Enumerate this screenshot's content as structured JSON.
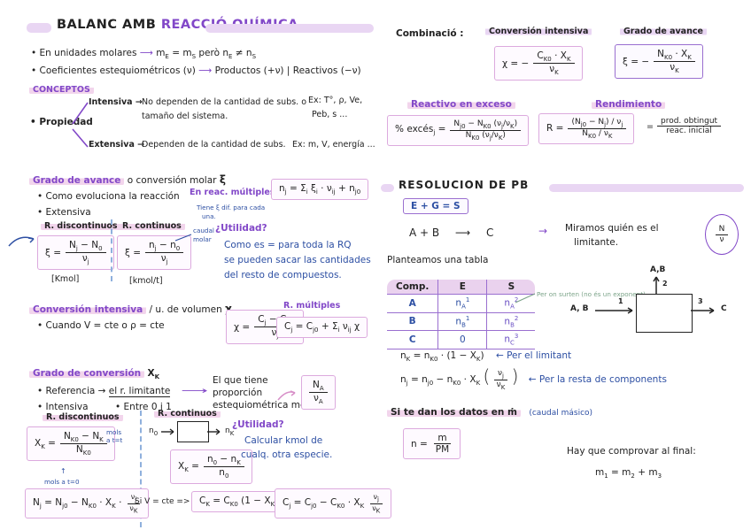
{
  "colors": {
    "accent_purple": "#8248c8",
    "highlight_lavender": "#e9d6f3",
    "highlight_pink": "#f2d5ec",
    "box_border": "#dcaade",
    "ink_blue": "#2d4fa3",
    "ink_green": "#7ca489",
    "ink_black": "#222222"
  },
  "left": {
    "title": {
      "pre": "BALANC AMB",
      "accent": "REACCIÓ QUÍMICA"
    },
    "bullets": [
      {
        "text": "• En unidades molares",
        "arrow": "⟶",
        "formula": "m<sub>E</sub> = m<sub>S</sub>   però   n<sub>E</sub> ≠ n<sub>S</sub>"
      },
      {
        "text": "• Coeficientes estequiométricos (ν)",
        "arrow": "⟶",
        "formula": "Productos (+ν)  |  Reactivos (−ν)"
      }
    ],
    "conceptos": {
      "heading": "CONCEPTOS",
      "root": "• Propiedad",
      "intensiva_label": "Intensiva →",
      "intensiva_text1": "No dependen de la cantidad de subs. o",
      "intensiva_text2": "tamaño del sistema.",
      "intensiva_ex1": "Ex: T°, ρ, Ve,",
      "intensiva_ex2": "Peb, s ...",
      "extensiva_label": "Extensiva →",
      "extensiva_text": "Dependen de la cantidad de subs.",
      "extensiva_ex": "Ex: m, V, energía ..."
    },
    "grado_avance": {
      "heading_hl": "Grado de avance",
      "heading_rest": "o conversión molar",
      "heading_sym": "ξ",
      "bullet1": "• Como evoluciona la reacción",
      "bullet2": "• Extensiva",
      "mult_label": "En reac. múltiples",
      "mult_formula": "n<sub>j</sub> = Σ<sub>i</sub> ξ<sub>i</sub> · ν<sub>ij</sub> + n<sub>j0</sub>",
      "mult_note1": "Tiene ξ dif. para cada",
      "mult_note2": "una.",
      "disc_title": "R. discontinuos",
      "disc_lhs": "ξ =",
      "disc_num": "N<sub>j</sub> − N<sub>0</sub>",
      "disc_den": "ν<sub>j</sub>",
      "disc_unit": "[Kmol]",
      "cont_title": "R. continuos",
      "cont_lhs": "ξ =",
      "cont_num": "n<sub>j</sub> − n<sub>0</sub>",
      "cont_den": "ν<sub>j</sub>",
      "cont_unit": "[kmol/t]",
      "cont_note1": "caudal",
      "cont_note2": "molar",
      "utilidad_title": "¿Utilidad?",
      "utilidad_l1": "Como es = para toda la RQ",
      "utilidad_l2": "se pueden sacar las cantidades",
      "utilidad_l3": "del resto de compuestos."
    },
    "conv_intensiva": {
      "heading_hl": "Conversión intensiva",
      "heading_rest": "/ u. de volumen",
      "heading_sym": "χ",
      "bullet": "• Cuando  V = cte  o  ρ = cte",
      "lhs": "χ =",
      "num": "C<sub>j</sub> − C<sub>j0</sub>",
      "den": "ν<sub>j</sub>",
      "mult_label": "R. múltiples",
      "mult_formula": "C<sub>j</sub> = C<sub>j0</sub> + Σ<sub>i</sub> ν<sub>ij</sub> χ"
    },
    "grado_conversion": {
      "heading_hl": "Grado de conversión",
      "heading_sym": "X<sub>K</sub>",
      "b1_pre": "• Referencia →",
      "b1_link": "el r. limitante",
      "b1_arrow": "⟶",
      "b2": "• Intensiva",
      "b3": "• Entre 0 i 1",
      "note_l1": "El que tiene",
      "note_l2": "proporción",
      "note_l3": "estequiométrica menor",
      "ref_num": "N<sub>A</sub>",
      "ref_den": "ν<sub>A</sub>",
      "disc_title": "R. discontinuos",
      "disc_lhs": "X<sub>K</sub> =",
      "disc_num": "N<sub>K0</sub> − N<sub>K</sub>",
      "disc_den": "N<sub>K0</sub>",
      "disc_note_top1": "mols",
      "disc_note_top2": "a t=t",
      "disc_arrow_up": "↑",
      "disc_note_bottom": "mols a t=0",
      "cont_title": "R. continuos",
      "cont_in": "n<sub>0</sub>",
      "cont_out": "n<sub>K</sub>",
      "cont_lhs": "X<sub>K</sub> =",
      "cont_num": "n<sub>0</sub> − n<sub>K</sub>",
      "cont_den": "n<sub>0</sub>",
      "utilidad_title": "¿Utilidad?",
      "utilidad_l1": "Calcular kmol de",
      "utilidad_l2": "cualq. otra especie.",
      "nj_pre": "N<sub>j</sub> = N<sub>j0</sub> − N<sub>K0</sub> · X<sub>K</sub> ·",
      "nj_num": "ν<sub>j</sub>",
      "nj_den": "ν<sub>K</sub>",
      "vcte_label": "Si V = cte  =>",
      "ck_formula": "C<sub>K</sub> = C<sub>K0</sub> (1 − X<sub>K</sub>)",
      "cj_pre": "C<sub>j</sub> = C<sub>j0</sub> − C<sub>K0</sub> · X<sub>K</sub>",
      "cj_num": "ν<sub>j</sub>",
      "cj_den": "ν<sub>K</sub>"
    }
  },
  "right": {
    "combinacio": {
      "label": "Combinació :",
      "chi_title": "Conversión intensiva",
      "chi_lhs": "χ = −",
      "chi_num": "C<sub>K0</sub> · X<sub>K</sub>",
      "chi_den": "ν<sub>K</sub>",
      "xi_title": "Grado de avance",
      "xi_lhs": "ξ = −",
      "xi_num": "N<sub>K0</sub> · X<sub>K</sub>",
      "xi_den": "ν<sub>K</sub>"
    },
    "exceso": {
      "title": "Reactivo en exceso",
      "lhs": "% excés<sub>j</sub> =",
      "num": "N<sub>j0</sub> − N<sub>K0</sub> (ν<sub>j</sub>/ν<sub>K</sub>)",
      "den": "N<sub>K0</sub> (ν<sub>j</sub>/ν<sub>K</sub>)"
    },
    "rendimiento": {
      "title": "Rendimiento",
      "lhs": "R =",
      "num": "(N<sub>j0</sub> − N<sub>j</sub>) / ν<sub>j</sub>",
      "den": "N<sub>K0</sub> / ν<sub>K</sub>",
      "eq": "=",
      "num2": "prod. obtingut",
      "den2": "reac. inicial"
    },
    "resolucion": {
      "heading": "RESOLUCION  DE  PB",
      "egs": "E + G = S",
      "reactants": "A   +   B",
      "arrow": "⟶",
      "product": "C",
      "note_arrow": "→",
      "note_l1": "Miramos quién es el",
      "note_l2": "limitante.",
      "circle_num": "N",
      "circle_den": "ν",
      "plantea": "Planteamos una tabla",
      "table": {
        "headers": [
          "Comp.",
          "E",
          "S"
        ],
        "rows": [
          [
            "A",
            "n<sub>A</sub><sup>1</sup>",
            "n<sub>A</sub><sup>2</sup>"
          ],
          [
            "B",
            "n<sub>B</sub><sup>1</sup>",
            "n<sub>B</sub><sup>2</sup>"
          ],
          [
            "C",
            "0",
            "n<sub>C</sub><sup>3</sup>"
          ]
        ],
        "note": "Per on surten  (no és un exponent)"
      },
      "diagram": {
        "top_label": "A,B",
        "top_num": "2",
        "left_label": "A, B",
        "left_num": "1",
        "right_num": "3",
        "right_label": "C"
      },
      "nk_formula": "n<sub>K</sub> = n<sub>K0</sub> · (1 − X<sub>K</sub>)",
      "nk_note": "← Per el limitant",
      "nj_pre": "n<sub>j</sub> = n<sub>j0</sub> − n<sub>K0</sub> · X<sub>K</sub>",
      "nj_lp": "(",
      "nj_num": "ν<sub>j</sub>",
      "nj_den": "ν<sub>K</sub>",
      "nj_rp": ")",
      "nj_note": "← Per la resta de components",
      "massflow_text": "Si te dan los datos en  ṁ",
      "massflow_note": "(caudal másico)",
      "nm_lhs": "n =",
      "nm_num": "m",
      "nm_den": "PM",
      "check_title": "Hay que comprovar al final:",
      "check_formula": "m<sub>1</sub> = m<sub>2</sub> + m<sub>3</sub>"
    }
  }
}
